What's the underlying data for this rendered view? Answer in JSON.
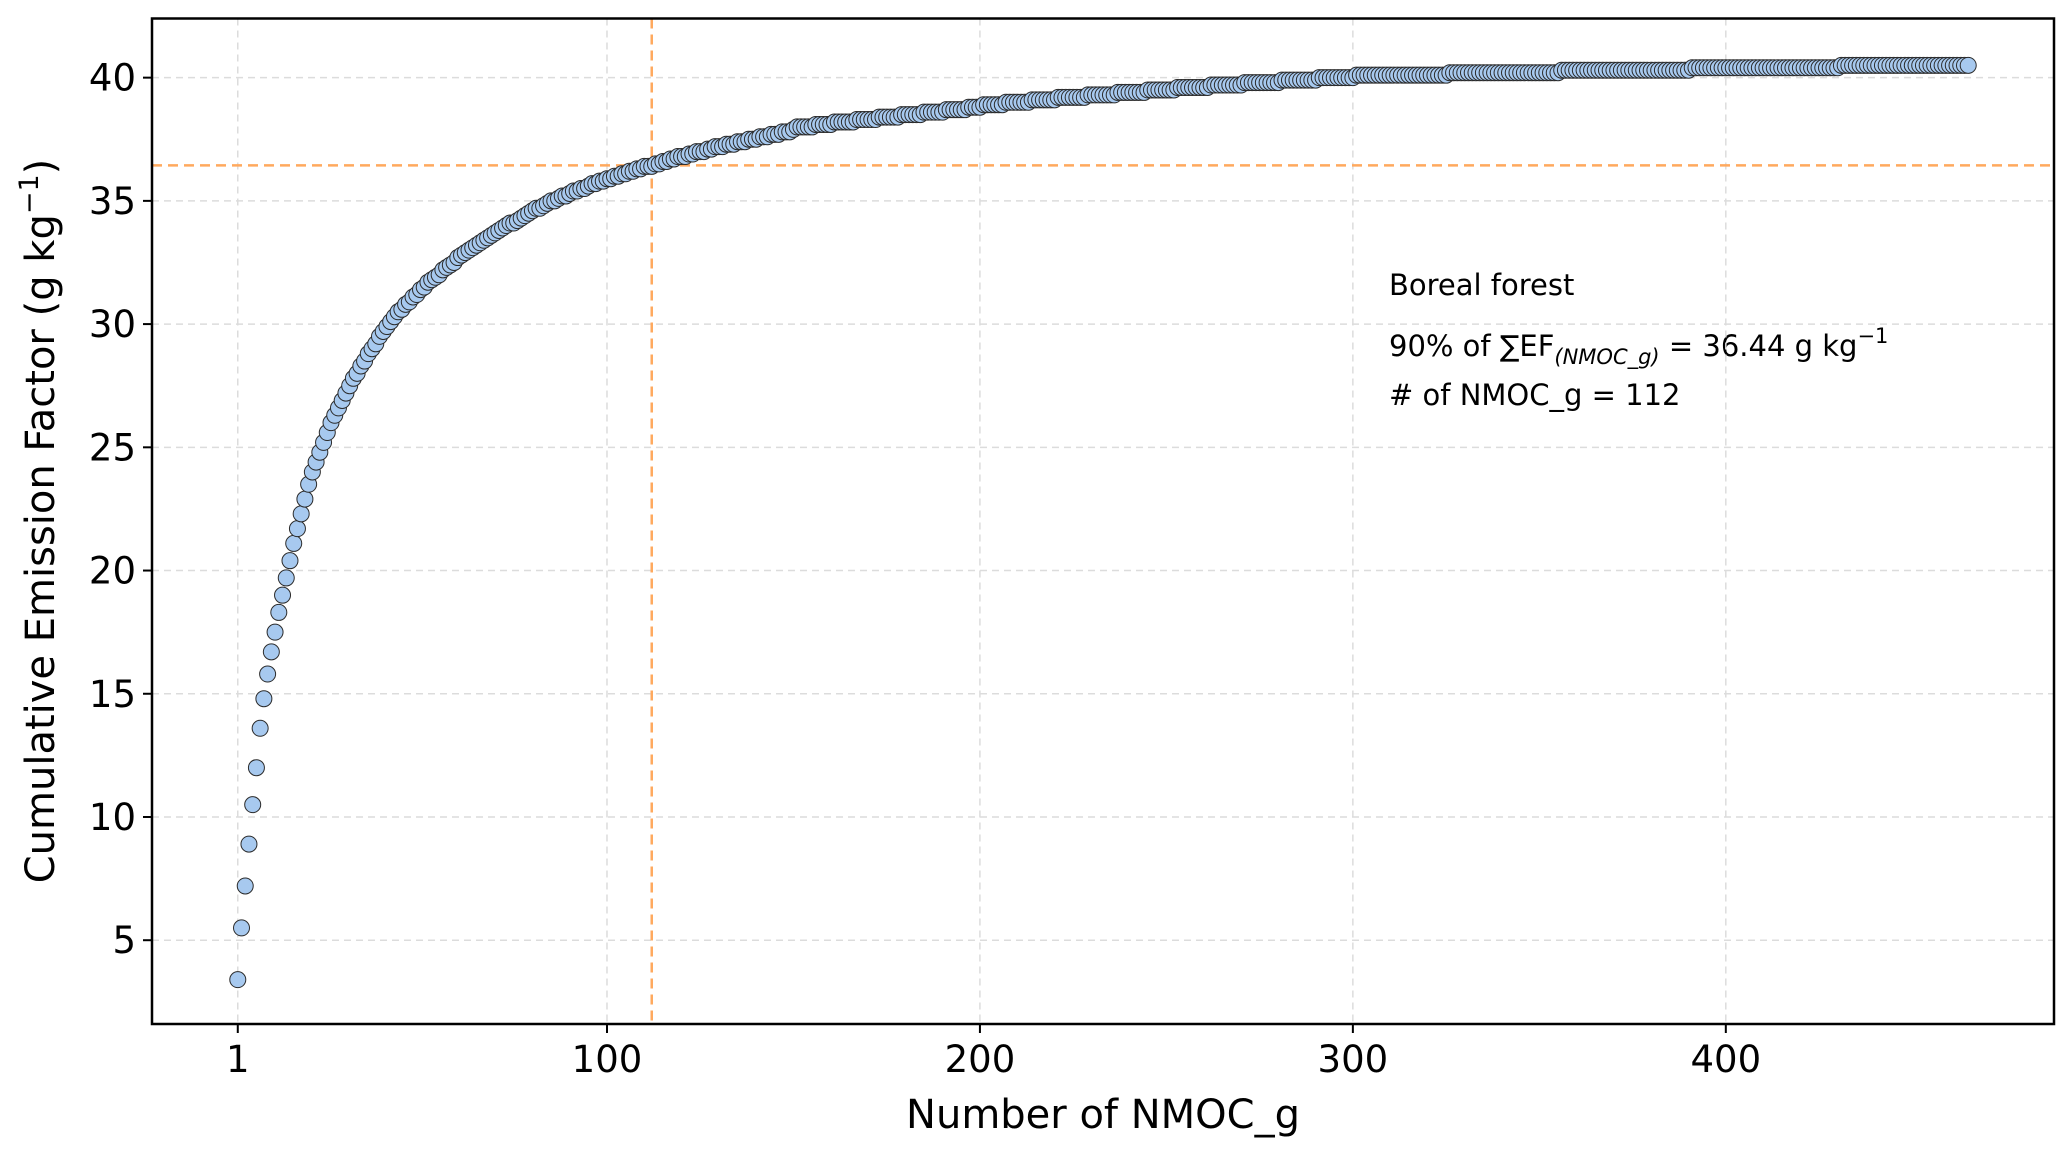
{
  "chart_data": {
    "type": "scatter",
    "xlabel": "Number of NMOC_g",
    "ylabel": [
      "Cumulative Emission Factor (g kg",
      "−1",
      ")"
    ],
    "annotations": {
      "title": "Boreal forest",
      "line1": [
        "90% of ∑EF",
        "(NMOC_g)",
        " = 36.44 g kg",
        "−1"
      ],
      "line2": "# of NMOC_g = 112"
    },
    "vline": 112,
    "hline": 36.44,
    "ref_color": "#ffa95e",
    "color": "#a7c9ef",
    "edgecolor": "#2b2b2b",
    "grid": true,
    "xlim": [
      -22,
      488
    ],
    "ylim": [
      1.6,
      42.4
    ],
    "xticks": [
      1,
      100,
      200,
      300,
      400
    ],
    "yticks": [
      5,
      10,
      15,
      20,
      25,
      30,
      35,
      40
    ],
    "x": [
      1,
      2,
      3,
      4,
      5,
      6,
      7,
      8,
      9,
      10,
      11,
      12,
      13,
      14,
      15,
      16,
      17,
      18,
      19,
      20,
      21,
      22,
      23,
      24,
      25,
      26,
      27,
      28,
      29,
      30,
      31,
      32,
      33,
      34,
      35,
      36,
      37,
      38,
      39,
      40,
      41,
      42,
      43,
      44,
      45,
      46,
      47,
      48,
      49,
      50,
      51,
      52,
      53,
      54,
      55,
      56,
      57,
      58,
      59,
      60,
      61,
      62,
      63,
      64,
      65,
      66,
      67,
      68,
      69,
      70,
      71,
      72,
      73,
      74,
      75,
      76,
      77,
      78,
      79,
      80,
      81,
      82,
      83,
      84,
      85,
      86,
      87,
      88,
      89,
      90,
      91,
      92,
      93,
      94,
      95,
      96,
      97,
      98,
      99,
      100,
      101,
      102,
      103,
      104,
      105,
      106,
      107,
      108,
      109,
      110,
      111,
      112,
      113,
      114,
      115,
      116,
      117,
      118,
      119,
      120,
      121,
      122,
      123,
      124,
      125,
      126,
      127,
      128,
      129,
      130,
      131,
      132,
      133,
      134,
      135,
      136,
      137,
      138,
      139,
      140,
      141,
      142,
      143,
      144,
      145,
      146,
      147,
      148,
      149,
      150,
      151,
      152,
      153,
      154,
      155,
      156,
      157,
      158,
      159,
      160,
      161,
      162,
      163,
      164,
      165,
      166,
      167,
      168,
      169,
      170,
      171,
      172,
      173,
      174,
      175,
      176,
      177,
      178,
      179,
      180,
      181,
      182,
      183,
      184,
      185,
      186,
      187,
      188,
      189,
      190,
      191,
      192,
      193,
      194,
      195,
      196,
      197,
      198,
      199,
      200,
      201,
      202,
      203,
      204,
      205,
      206,
      207,
      208,
      209,
      210,
      211,
      212,
      213,
      214,
      215,
      216,
      217,
      218,
      219,
      220,
      221,
      222,
      223,
      224,
      225,
      226,
      227,
      228,
      229,
      230,
      231,
      232,
      233,
      234,
      235,
      236,
      237,
      238,
      239,
      240,
      241,
      242,
      243,
      244,
      245,
      246,
      247,
      248,
      249,
      250,
      251,
      252,
      253,
      254,
      255,
      256,
      257,
      258,
      259,
      260,
      261,
      262,
      263,
      264,
      265,
      266,
      267,
      268,
      269,
      270,
      271,
      272,
      273,
      274,
      275,
      276,
      277,
      278,
      279,
      280,
      281,
      282,
      283,
      284,
      285,
      286,
      287,
      288,
      289,
      290,
      291,
      292,
      293,
      294,
      295,
      296,
      297,
      298,
      299,
      300,
      301,
      302,
      303,
      304,
      305,
      306,
      307,
      308,
      309,
      310,
      311,
      312,
      313,
      314,
      315,
      316,
      317,
      318,
      319,
      320,
      321,
      322,
      323,
      324,
      325,
      326,
      327,
      328,
      329,
      330,
      331,
      332,
      333,
      334,
      335,
      336,
      337,
      338,
      339,
      340,
      341,
      342,
      343,
      344,
      345,
      346,
      347,
      348,
      349,
      350,
      351,
      352,
      353,
      354,
      355,
      356,
      357,
      358,
      359,
      360,
      361,
      362,
      363,
      364,
      365,
      366,
      367,
      368,
      369,
      370,
      371,
      372,
      373,
      374,
      375,
      376,
      377,
      378,
      379,
      380,
      381,
      382,
      383,
      384,
      385,
      386,
      387,
      388,
      389,
      390,
      391,
      392,
      393,
      394,
      395,
      396,
      397,
      398,
      399,
      400,
      401,
      402,
      403,
      404,
      405,
      406,
      407,
      408,
      409,
      410,
      411,
      412,
      413,
      414,
      415,
      416,
      417,
      418,
      419,
      420,
      421,
      422,
      423,
      424,
      425,
      426,
      427,
      428,
      429,
      430,
      431,
      432,
      433,
      434,
      435,
      436,
      437,
      438,
      439,
      440,
      441,
      442,
      443,
      444,
      445,
      446,
      447,
      448,
      449,
      450,
      451,
      452,
      453,
      454,
      455,
      456,
      457,
      458,
      459,
      460,
      461,
      462,
      463,
      464,
      465
    ],
    "values": [
      3.4,
      5.5,
      7.2,
      8.9,
      10.5,
      12.0,
      13.6,
      14.8,
      15.8,
      16.7,
      17.5,
      18.3,
      19.0,
      19.7,
      20.4,
      21.1,
      21.7,
      22.3,
      22.9,
      23.5,
      24.0,
      24.4,
      24.8,
      25.2,
      25.6,
      26.0,
      26.3,
      26.6,
      26.9,
      27.2,
      27.5,
      27.8,
      28.0,
      28.3,
      28.5,
      28.8,
      29.0,
      29.2,
      29.5,
      29.7,
      29.9,
      30.1,
      30.3,
      30.5,
      30.6,
      30.8,
      30.9,
      31.1,
      31.2,
      31.4,
      31.5,
      31.7,
      31.8,
      31.9,
      32.0,
      32.2,
      32.3,
      32.4,
      32.5,
      32.7,
      32.8,
      32.9,
      33.0,
      33.1,
      33.2,
      33.3,
      33.4,
      33.5,
      33.6,
      33.7,
      33.8,
      33.9,
      34.0,
      34.1,
      34.1,
      34.2,
      34.3,
      34.4,
      34.5,
      34.6,
      34.7,
      34.7,
      34.8,
      34.9,
      35.0,
      35.0,
      35.1,
      35.2,
      35.2,
      35.3,
      35.4,
      35.4,
      35.5,
      35.5,
      35.6,
      35.7,
      35.7,
      35.8,
      35.8,
      35.9,
      35.9,
      36.0,
      36.0,
      36.1,
      36.1,
      36.2,
      36.2,
      36.3,
      36.3,
      36.4,
      36.4,
      36.4,
      36.5,
      36.5,
      36.6,
      36.6,
      36.7,
      36.7,
      36.8,
      36.8,
      36.8,
      36.9,
      36.9,
      37.0,
      37.0,
      37.0,
      37.1,
      37.1,
      37.2,
      37.2,
      37.2,
      37.3,
      37.3,
      37.3,
      37.4,
      37.4,
      37.4,
      37.5,
      37.5,
      37.5,
      37.6,
      37.6,
      37.6,
      37.7,
      37.7,
      37.7,
      37.8,
      37.8,
      37.8,
      37.9,
      38.0,
      38.0,
      38.0,
      38.0,
      38.0,
      38.1,
      38.1,
      38.1,
      38.1,
      38.1,
      38.2,
      38.2,
      38.2,
      38.2,
      38.2,
      38.2,
      38.3,
      38.3,
      38.3,
      38.3,
      38.3,
      38.3,
      38.4,
      38.4,
      38.4,
      38.4,
      38.4,
      38.4,
      38.5,
      38.5,
      38.5,
      38.5,
      38.5,
      38.5,
      38.6,
      38.6,
      38.6,
      38.6,
      38.6,
      38.6,
      38.7,
      38.7,
      38.7,
      38.7,
      38.7,
      38.7,
      38.8,
      38.8,
      38.8,
      38.8,
      38.9,
      38.9,
      38.9,
      38.9,
      38.9,
      38.9,
      39.0,
      39.0,
      39.0,
      39.0,
      39.0,
      39.0,
      39.0,
      39.1,
      39.1,
      39.1,
      39.1,
      39.1,
      39.1,
      39.1,
      39.2,
      39.2,
      39.2,
      39.2,
      39.2,
      39.2,
      39.2,
      39.2,
      39.3,
      39.3,
      39.3,
      39.3,
      39.3,
      39.3,
      39.3,
      39.3,
      39.4,
      39.4,
      39.4,
      39.4,
      39.4,
      39.4,
      39.4,
      39.4,
      39.5,
      39.5,
      39.5,
      39.5,
      39.5,
      39.5,
      39.5,
      39.5,
      39.6,
      39.6,
      39.6,
      39.6,
      39.6,
      39.6,
      39.6,
      39.6,
      39.6,
      39.7,
      39.7,
      39.7,
      39.7,
      39.7,
      39.7,
      39.7,
      39.7,
      39.7,
      39.8,
      39.8,
      39.8,
      39.8,
      39.8,
      39.8,
      39.8,
      39.8,
      39.8,
      39.8,
      39.9,
      39.9,
      39.9,
      39.9,
      39.9,
      39.9,
      39.9,
      39.9,
      39.9,
      39.9,
      40.0,
      40.0,
      40.0,
      40.0,
      40.0,
      40.0,
      40.0,
      40.0,
      40.0,
      40.0,
      40.1,
      40.1,
      40.1,
      40.1,
      40.1,
      40.1,
      40.1,
      40.1,
      40.1,
      40.1,
      40.1,
      40.1,
      40.1,
      40.1,
      40.1,
      40.1,
      40.1,
      40.1,
      40.1,
      40.1,
      40.1,
      40.1,
      40.1,
      40.1,
      40.1,
      40.2,
      40.2,
      40.2,
      40.2,
      40.2,
      40.2,
      40.2,
      40.2,
      40.2,
      40.2,
      40.2,
      40.2,
      40.2,
      40.2,
      40.2,
      40.2,
      40.2,
      40.2,
      40.2,
      40.2,
      40.2,
      40.2,
      40.2,
      40.2,
      40.2,
      40.2,
      40.2,
      40.2,
      40.2,
      40.2,
      40.3,
      40.3,
      40.3,
      40.3,
      40.3,
      40.3,
      40.3,
      40.3,
      40.3,
      40.3,
      40.3,
      40.3,
      40.3,
      40.3,
      40.3,
      40.3,
      40.3,
      40.3,
      40.3,
      40.3,
      40.3,
      40.3,
      40.3,
      40.3,
      40.3,
      40.3,
      40.3,
      40.3,
      40.3,
      40.3,
      40.3,
      40.3,
      40.3,
      40.3,
      40.3,
      40.4,
      40.4,
      40.4,
      40.4,
      40.4,
      40.4,
      40.4,
      40.4,
      40.4,
      40.4,
      40.4,
      40.4,
      40.4,
      40.4,
      40.4,
      40.4,
      40.4,
      40.4,
      40.4,
      40.4,
      40.4,
      40.4,
      40.4,
      40.4,
      40.4,
      40.4,
      40.4,
      40.4,
      40.4,
      40.4,
      40.4,
      40.4,
      40.4,
      40.4,
      40.4,
      40.4,
      40.4,
      40.4,
      40.4,
      40.4,
      40.5,
      40.5,
      40.5,
      40.5,
      40.5,
      40.5,
      40.5,
      40.5,
      40.5,
      40.5,
      40.5,
      40.5,
      40.5,
      40.5,
      40.5,
      40.5,
      40.5,
      40.5,
      40.5,
      40.5,
      40.5,
      40.5,
      40.5,
      40.5,
      40.5,
      40.5,
      40.5,
      40.5,
      40.5,
      40.5,
      40.5,
      40.5,
      40.5,
      40.5,
      40.5
    ]
  }
}
